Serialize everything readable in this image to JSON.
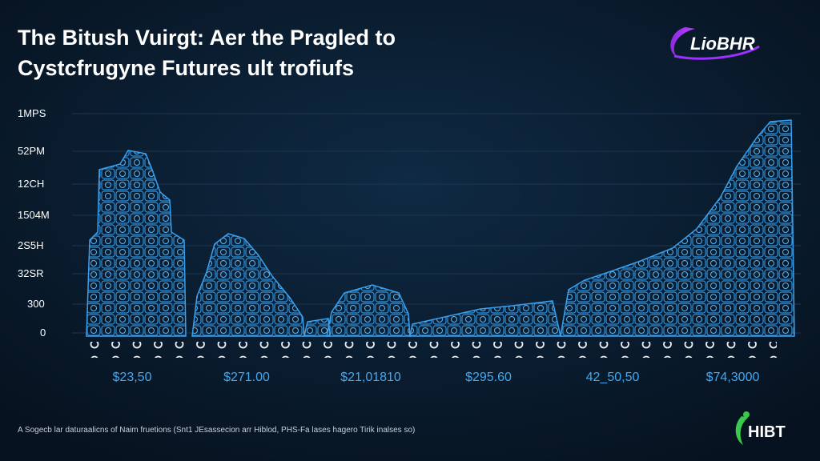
{
  "header": {
    "title_lines": [
      "The Bitush Vuirgt: Aer the Pragled to",
      "Cystcfrugyne Futures ult trofiufs"
    ]
  },
  "logo_top": "LioBHR",
  "y_labels": [
    "1MPS",
    "52PM",
    "12CH",
    "1504M",
    "2S5H",
    "32SR",
    "300",
    "0"
  ],
  "x_labels": [
    "$23,50",
    "$271.00",
    "$21,01810",
    "$295.60",
    "42_50,50",
    "$74,3000"
  ],
  "footnote": "A Sogecb lar daturaalicns of Naim fruetions (Snt1 JEsassecion arr Hiblod, PHS-Fa lases hagero Tirik inalses so)",
  "logo_bottom": "HIBT"
}
